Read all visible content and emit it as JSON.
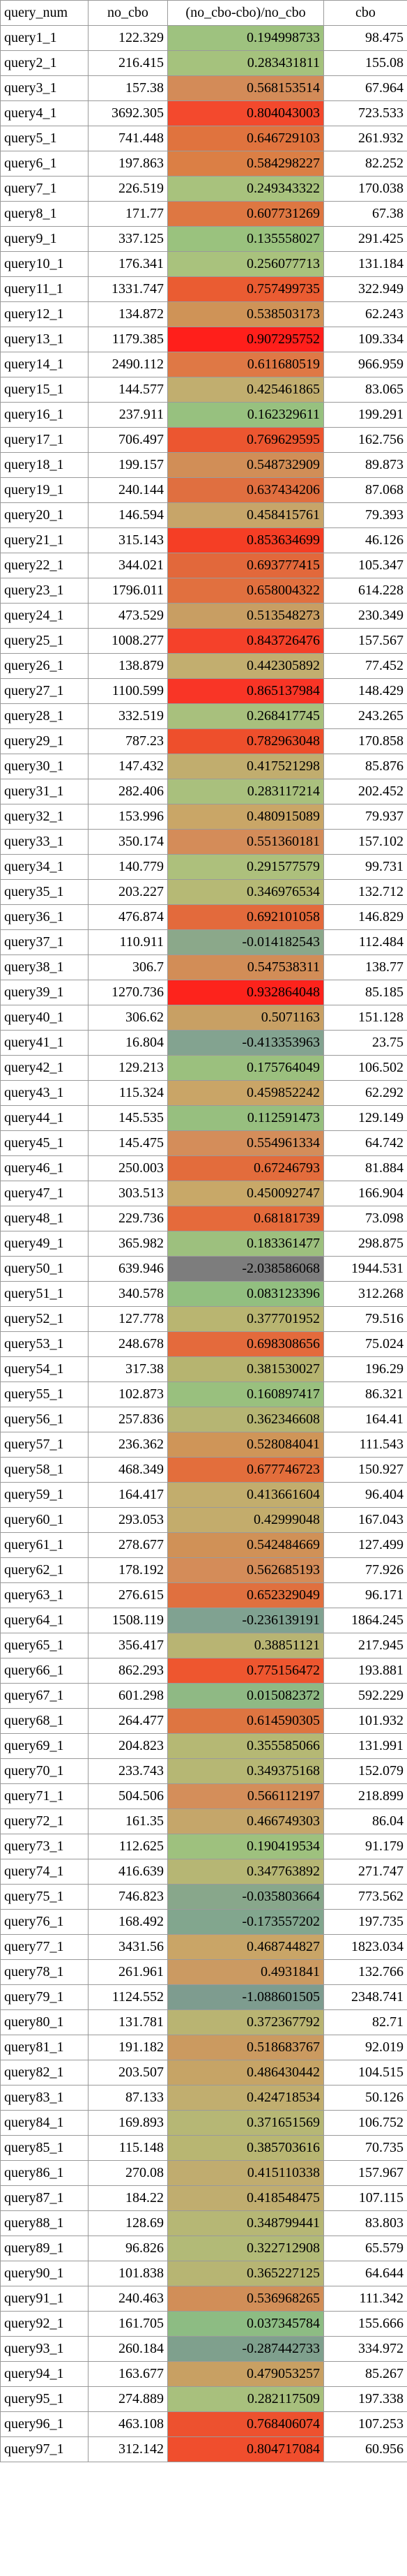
{
  "headers": [
    "query_num",
    "no_cbo",
    "(no_cbo-cbo)/no_cbo",
    "cbo"
  ],
  "rows": [
    [
      "query1_1",
      "122.329",
      "0.194998733",
      "98.475"
    ],
    [
      "query2_1",
      "216.415",
      "0.283431811",
      "155.08"
    ],
    [
      "query3_1",
      "157.38",
      "0.568153514",
      "67.964"
    ],
    [
      "query4_1",
      "3692.305",
      "0.804043003",
      "723.533"
    ],
    [
      "query5_1",
      "741.448",
      "0.646729103",
      "261.932"
    ],
    [
      "query6_1",
      "197.863",
      "0.584298227",
      "82.252"
    ],
    [
      "query7_1",
      "226.519",
      "0.249343322",
      "170.038"
    ],
    [
      "query8_1",
      "171.77",
      "0.607731269",
      "67.38"
    ],
    [
      "query9_1",
      "337.125",
      "0.135558027",
      "291.425"
    ],
    [
      "query10_1",
      "176.341",
      "0.256077713",
      "131.184"
    ],
    [
      "query11_1",
      "1331.747",
      "0.757499735",
      "322.949"
    ],
    [
      "query12_1",
      "134.872",
      "0.538503173",
      "62.243"
    ],
    [
      "query13_1",
      "1179.385",
      "0.907295752",
      "109.334"
    ],
    [
      "query14_1",
      "2490.112",
      "0.611680519",
      "966.959"
    ],
    [
      "query15_1",
      "144.577",
      "0.425461865",
      "83.065"
    ],
    [
      "query16_1",
      "237.911",
      "0.162329611",
      "199.291"
    ],
    [
      "query17_1",
      "706.497",
      "0.769629595",
      "162.756"
    ],
    [
      "query18_1",
      "199.157",
      "0.548732909",
      "89.873"
    ],
    [
      "query19_1",
      "240.144",
      "0.637434206",
      "87.068"
    ],
    [
      "query20_1",
      "146.594",
      "0.458415761",
      "79.393"
    ],
    [
      "query21_1",
      "315.143",
      "0.853634699",
      "46.126"
    ],
    [
      "query22_1",
      "344.021",
      "0.693777415",
      "105.347"
    ],
    [
      "query23_1",
      "1796.011",
      "0.658004322",
      "614.228"
    ],
    [
      "query24_1",
      "473.529",
      "0.513548273",
      "230.349"
    ],
    [
      "query25_1",
      "1008.277",
      "0.843726476",
      "157.567"
    ],
    [
      "query26_1",
      "138.879",
      "0.442305892",
      "77.452"
    ],
    [
      "query27_1",
      "1100.599",
      "0.865137984",
      "148.429"
    ],
    [
      "query28_1",
      "332.519",
      "0.268417745",
      "243.265"
    ],
    [
      "query29_1",
      "787.23",
      "0.782963048",
      "170.858"
    ],
    [
      "query30_1",
      "147.432",
      "0.417521298",
      "85.876"
    ],
    [
      "query31_1",
      "282.406",
      "0.283117214",
      "202.452"
    ],
    [
      "query32_1",
      "153.996",
      "0.480915089",
      "79.937"
    ],
    [
      "query33_1",
      "350.174",
      "0.551360181",
      "157.102"
    ],
    [
      "query34_1",
      "140.779",
      "0.291577579",
      "99.731"
    ],
    [
      "query35_1",
      "203.227",
      "0.346976534",
      "132.712"
    ],
    [
      "query36_1",
      "476.874",
      "0.692101058",
      "146.829"
    ],
    [
      "query37_1",
      "110.911",
      "-0.014182543",
      "112.484"
    ],
    [
      "query38_1",
      "306.7",
      "0.547538311",
      "138.77"
    ],
    [
      "query39_1",
      "1270.736",
      "0.932864048",
      "85.185"
    ],
    [
      "query40_1",
      "306.62",
      "0.5071163",
      "151.128"
    ],
    [
      "query41_1",
      "16.804",
      "-0.413353963",
      "23.75"
    ],
    [
      "query42_1",
      "129.213",
      "0.175764049",
      "106.502"
    ],
    [
      "query43_1",
      "115.324",
      "0.459852242",
      "62.292"
    ],
    [
      "query44_1",
      "145.535",
      "0.112591473",
      "129.149"
    ],
    [
      "query45_1",
      "145.475",
      "0.554961334",
      "64.742"
    ],
    [
      "query46_1",
      "250.003",
      "0.67246793",
      "81.884"
    ],
    [
      "query47_1",
      "303.513",
      "0.450092747",
      "166.904"
    ],
    [
      "query48_1",
      "229.736",
      "0.68181739",
      "73.098"
    ],
    [
      "query49_1",
      "365.982",
      "0.183361477",
      "298.875"
    ],
    [
      "query50_1",
      "639.946",
      "-2.038586068",
      "1944.531"
    ],
    [
      "query51_1",
      "340.578",
      "0.083123396",
      "312.268"
    ],
    [
      "query52_1",
      "127.778",
      "0.377701952",
      "79.516"
    ],
    [
      "query53_1",
      "248.678",
      "0.698308656",
      "75.024"
    ],
    [
      "query54_1",
      "317.38",
      "0.381530027",
      "196.29"
    ],
    [
      "query55_1",
      "102.873",
      "0.160897417",
      "86.321"
    ],
    [
      "query56_1",
      "257.836",
      "0.362346608",
      "164.41"
    ],
    [
      "query57_1",
      "236.362",
      "0.528084041",
      "111.543"
    ],
    [
      "query58_1",
      "468.349",
      "0.677746723",
      "150.927"
    ],
    [
      "query59_1",
      "164.417",
      "0.413661604",
      "96.404"
    ],
    [
      "query60_1",
      "293.053",
      "0.42999048",
      "167.043"
    ],
    [
      "query61_1",
      "278.677",
      "0.542484669",
      "127.499"
    ],
    [
      "query62_1",
      "178.192",
      "0.562685193",
      "77.926"
    ],
    [
      "query63_1",
      "276.615",
      "0.652329049",
      "96.171"
    ],
    [
      "query64_1",
      "1508.119",
      "-0.236139191",
      "1864.245"
    ],
    [
      "query65_1",
      "356.417",
      "0.38851121",
      "217.945"
    ],
    [
      "query66_1",
      "862.293",
      "0.775156472",
      "193.881"
    ],
    [
      "query67_1",
      "601.298",
      "0.015082372",
      "592.229"
    ],
    [
      "query68_1",
      "264.477",
      "0.614590305",
      "101.932"
    ],
    [
      "query69_1",
      "204.823",
      "0.355585066",
      "131.991"
    ],
    [
      "query70_1",
      "233.743",
      "0.349375168",
      "152.079"
    ],
    [
      "query71_1",
      "504.506",
      "0.566112197",
      "218.899"
    ],
    [
      "query72_1",
      "161.35",
      "0.466749303",
      "86.04"
    ],
    [
      "query73_1",
      "112.625",
      "0.190419534",
      "91.179"
    ],
    [
      "query74_1",
      "416.639",
      "0.347763892",
      "271.747"
    ],
    [
      "query75_1",
      "746.823",
      "-0.035803664",
      "773.562"
    ],
    [
      "query76_1",
      "168.492",
      "-0.173557202",
      "197.735"
    ],
    [
      "query77_1",
      "3431.56",
      "0.468744827",
      "1823.034"
    ],
    [
      "query78_1",
      "261.961",
      "0.4931841",
      "132.766"
    ],
    [
      "query79_1",
      "1124.552",
      "-1.088601505",
      "2348.741"
    ],
    [
      "query80_1",
      "131.781",
      "0.372367792",
      "82.71"
    ],
    [
      "query81_1",
      "191.182",
      "0.518683767",
      "92.019"
    ],
    [
      "query82_1",
      "203.507",
      "0.486430442",
      "104.515"
    ],
    [
      "query83_1",
      "87.133",
      "0.424718534",
      "50.126"
    ],
    [
      "query84_1",
      "169.893",
      "0.371651569",
      "106.752"
    ],
    [
      "query85_1",
      "115.148",
      "0.385703616",
      "70.735"
    ],
    [
      "query86_1",
      "270.08",
      "0.415110338",
      "157.967"
    ],
    [
      "query87_1",
      "184.22",
      "0.418548475",
      "107.115"
    ],
    [
      "query88_1",
      "128.69",
      "0.348799441",
      "83.803"
    ],
    [
      "query89_1",
      "96.826",
      "0.322712908",
      "65.579"
    ],
    [
      "query90_1",
      "101.838",
      "0.365227125",
      "64.644"
    ],
    [
      "query91_1",
      "240.463",
      "0.536968265",
      "111.342"
    ],
    [
      "query92_1",
      "161.705",
      "0.037345784",
      "155.666"
    ],
    [
      "query93_1",
      "260.184",
      "-0.287442733",
      "334.972"
    ],
    [
      "query94_1",
      "163.677",
      "0.479053257",
      "85.267"
    ],
    [
      "query95_1",
      "274.889",
      "0.282117509",
      "197.338"
    ],
    [
      "query96_1",
      "463.108",
      "0.768406074",
      "107.253"
    ],
    [
      "query97_1",
      "312.142",
      "0.804717084",
      "60.956"
    ]
  ],
  "ratio_colors": [
    "#9ec27f",
    "#a5c27d",
    "#d38b58",
    "#f3492d",
    "#e0733e",
    "#db7f45",
    "#a8c27d",
    "#de7742",
    "#9ac27e",
    "#a9c27d",
    "#ea5c32",
    "#cf9357",
    "#ff1f1b",
    "#df7845",
    "#c1ae6f",
    "#97c17f",
    "#ec5630",
    "#d18e57",
    "#e06f40",
    "#c7a569",
    "#f53e25",
    "#e2683b",
    "#e1703f",
    "#c89e63",
    "#f5412a",
    "#c2ae6f",
    "#f93526",
    "#a8c07d",
    "#ee4f2c",
    "#c1ad6e",
    "#a9c07d",
    "#c9a667",
    "#d48c59",
    "#adc07c",
    "#b6b975",
    "#e36a3c",
    "#8ba88a",
    "#d28d57",
    "#fd231c",
    "#c8a064",
    "#83a390",
    "#9bc07e",
    "#c9a567",
    "#97bf7f",
    "#d48d5a",
    "#e36c3c",
    "#c8a868",
    "#e56a3b",
    "#9dc07e",
    "#7d7d7d",
    "#92bf80",
    "#b9b571",
    "#e46a3c",
    "#b6b470",
    "#99c07e",
    "#b6b573",
    "#cf9558",
    "#e36e3c",
    "#c2ad6d",
    "#c3ac6c",
    "#d09157",
    "#d48c59",
    "#e0703f",
    "#80a291",
    "#b8b473",
    "#ee562f",
    "#8fb984",
    "#de7541",
    "#b5b874",
    "#b6b774",
    "#d48e5a",
    "#c5a66a",
    "#9ec17e",
    "#b6b674",
    "#88a78b",
    "#82a68e",
    "#c9a567",
    "#cb9a62",
    "#7e9c8f",
    "#b9b472",
    "#cb9a60",
    "#c6a466",
    "#c1ae6f",
    "#b6b775",
    "#b8b672",
    "#c0ac6f",
    "#c0ad6f",
    "#b6b775",
    "#b2ba77",
    "#b7b573",
    "#d18e58",
    "#8dbc83",
    "#7fa08d",
    "#c8a063",
    "#a8c07d",
    "#ed512f",
    "#f04e2d"
  ]
}
